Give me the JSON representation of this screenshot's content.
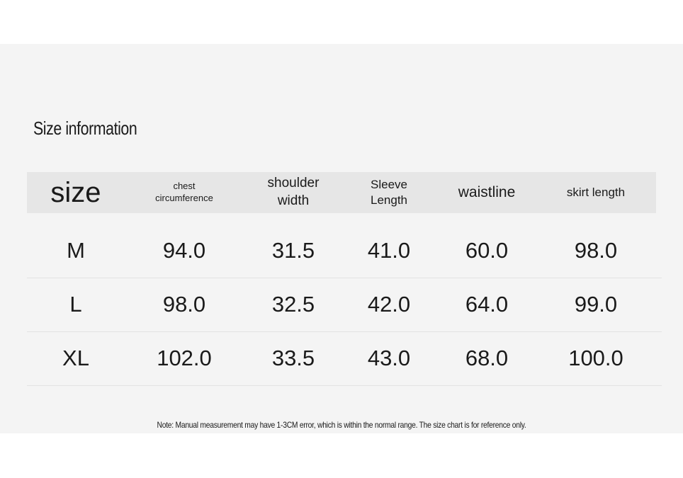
{
  "title": "Size information",
  "table": {
    "header": [
      "size",
      "chest circumference",
      "shoulder width",
      "Sleeve Length",
      "waistline",
      "skirt length"
    ],
    "rows": [
      [
        "M",
        "94.0",
        "31.5",
        "41.0",
        "60.0",
        "98.0"
      ],
      [
        "L",
        "98.0",
        "32.5",
        "42.0",
        "64.0",
        "99.0"
      ],
      [
        "XL",
        "102.0",
        "33.5",
        "43.0",
        "68.0",
        "100.0"
      ]
    ]
  },
  "note": "Note: Manual measurement may have 1-3CM error, which is within the normal range. The size chart is for reference only."
}
